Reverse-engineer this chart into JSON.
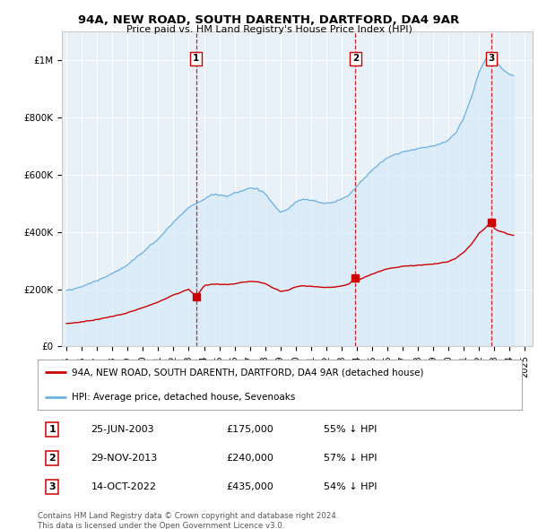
{
  "title": "94A, NEW ROAD, SOUTH DARENTH, DARTFORD, DA4 9AR",
  "subtitle": "Price paid vs. HM Land Registry's House Price Index (HPI)",
  "footer": "Contains HM Land Registry data © Crown copyright and database right 2024.\nThis data is licensed under the Open Government Licence v3.0.",
  "legend_property": "94A, NEW ROAD, SOUTH DARENTH, DARTFORD, DA4 9AR (detached house)",
  "legend_hpi": "HPI: Average price, detached house, Sevenoaks",
  "sales": [
    {
      "num": 1,
      "date_label": "25-JUN-2003",
      "date_x": 2003.48,
      "price": 175000,
      "pct": "55% ↓ HPI"
    },
    {
      "num": 2,
      "date_label": "29-NOV-2013",
      "date_x": 2013.91,
      "price": 240000,
      "pct": "57% ↓ HPI"
    },
    {
      "num": 3,
      "date_label": "14-OCT-2022",
      "date_x": 2022.79,
      "price": 435000,
      "pct": "54% ↓ HPI"
    }
  ],
  "hpi_line_color": "#6ab0e0",
  "hpi_fill_color": "#d8eaf8",
  "property_line_color": "#cc0000",
  "sale_marker_color": "#cc0000",
  "background_color": "#e8f0f8",
  "ylim": [
    0,
    1100000
  ],
  "xlim": [
    1994.7,
    2025.5
  ],
  "x_ticks": [
    1995,
    1996,
    1997,
    1998,
    1999,
    2000,
    2001,
    2002,
    2003,
    2004,
    2005,
    2006,
    2007,
    2008,
    2009,
    2010,
    2011,
    2012,
    2013,
    2014,
    2015,
    2016,
    2017,
    2018,
    2019,
    2020,
    2021,
    2022,
    2023,
    2024,
    2025
  ],
  "y_ticks": [
    0,
    200000,
    400000,
    600000,
    800000,
    1000000
  ],
  "y_tick_labels": [
    "£0",
    "£200K",
    "£400K",
    "£600K",
    "£800K",
    "£1M"
  ]
}
